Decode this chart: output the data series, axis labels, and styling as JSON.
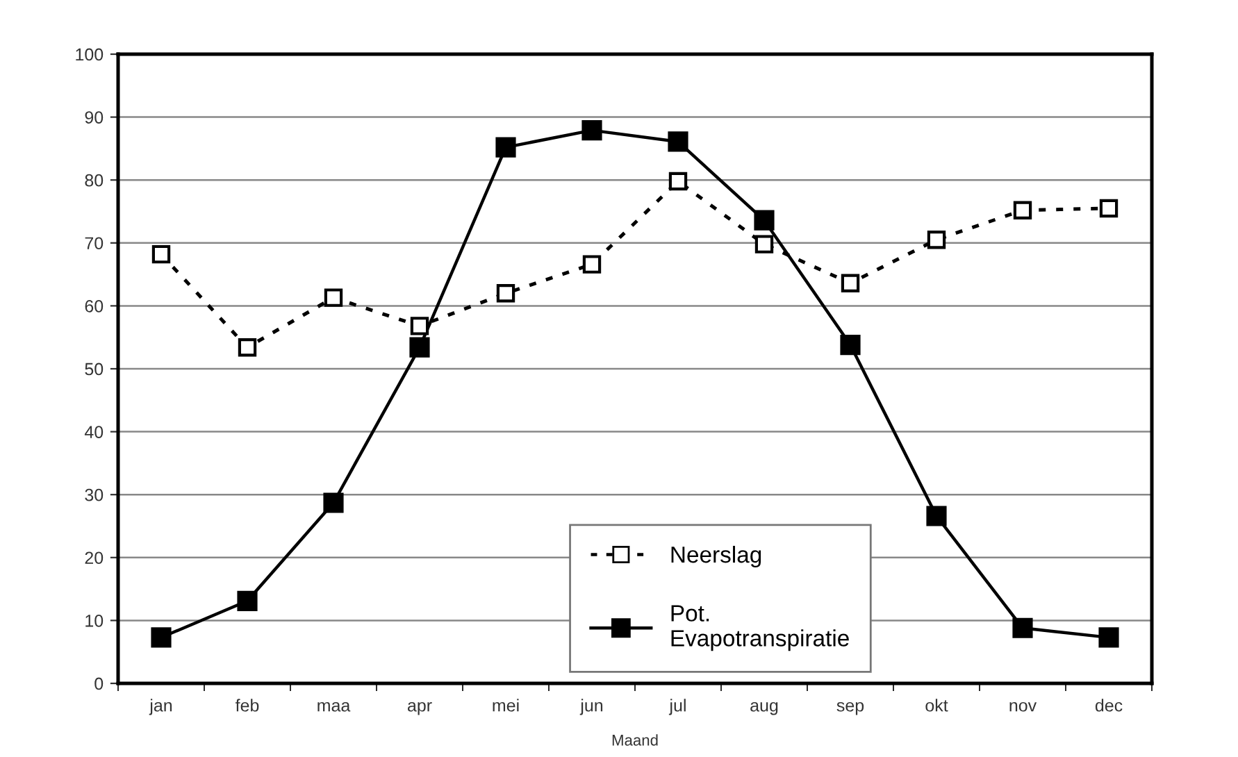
{
  "chart_data": {
    "type": "line",
    "xlabel": "Maand",
    "categories": [
      "jan",
      "feb",
      "maa",
      "apr",
      "mei",
      "jun",
      "jul",
      "aug",
      "sep",
      "okt",
      "nov",
      "dec"
    ],
    "series": [
      {
        "name": "Neerslag",
        "color": "#000000",
        "line_style": "dotted",
        "marker": "square",
        "values": [
          68.2,
          53.4,
          61.3,
          56.8,
          62.0,
          66.6,
          79.8,
          69.8,
          63.6,
          70.5,
          75.2,
          75.5
        ]
      },
      {
        "name": "Pot.\nEvapotranspiratie",
        "color": "#000000",
        "line_style": "solid",
        "marker": "square",
        "values": [
          7.3,
          13.1,
          28.7,
          53.4,
          85.2,
          87.9,
          86.1,
          73.6,
          53.8,
          26.6,
          8.8,
          7.3
        ]
      }
    ],
    "ylim": [
      0,
      100
    ],
    "yticks": [
      0,
      10,
      20,
      30,
      40,
      50,
      60,
      70,
      80,
      90,
      100
    ],
    "grid": "y",
    "legend": "bottom"
  }
}
